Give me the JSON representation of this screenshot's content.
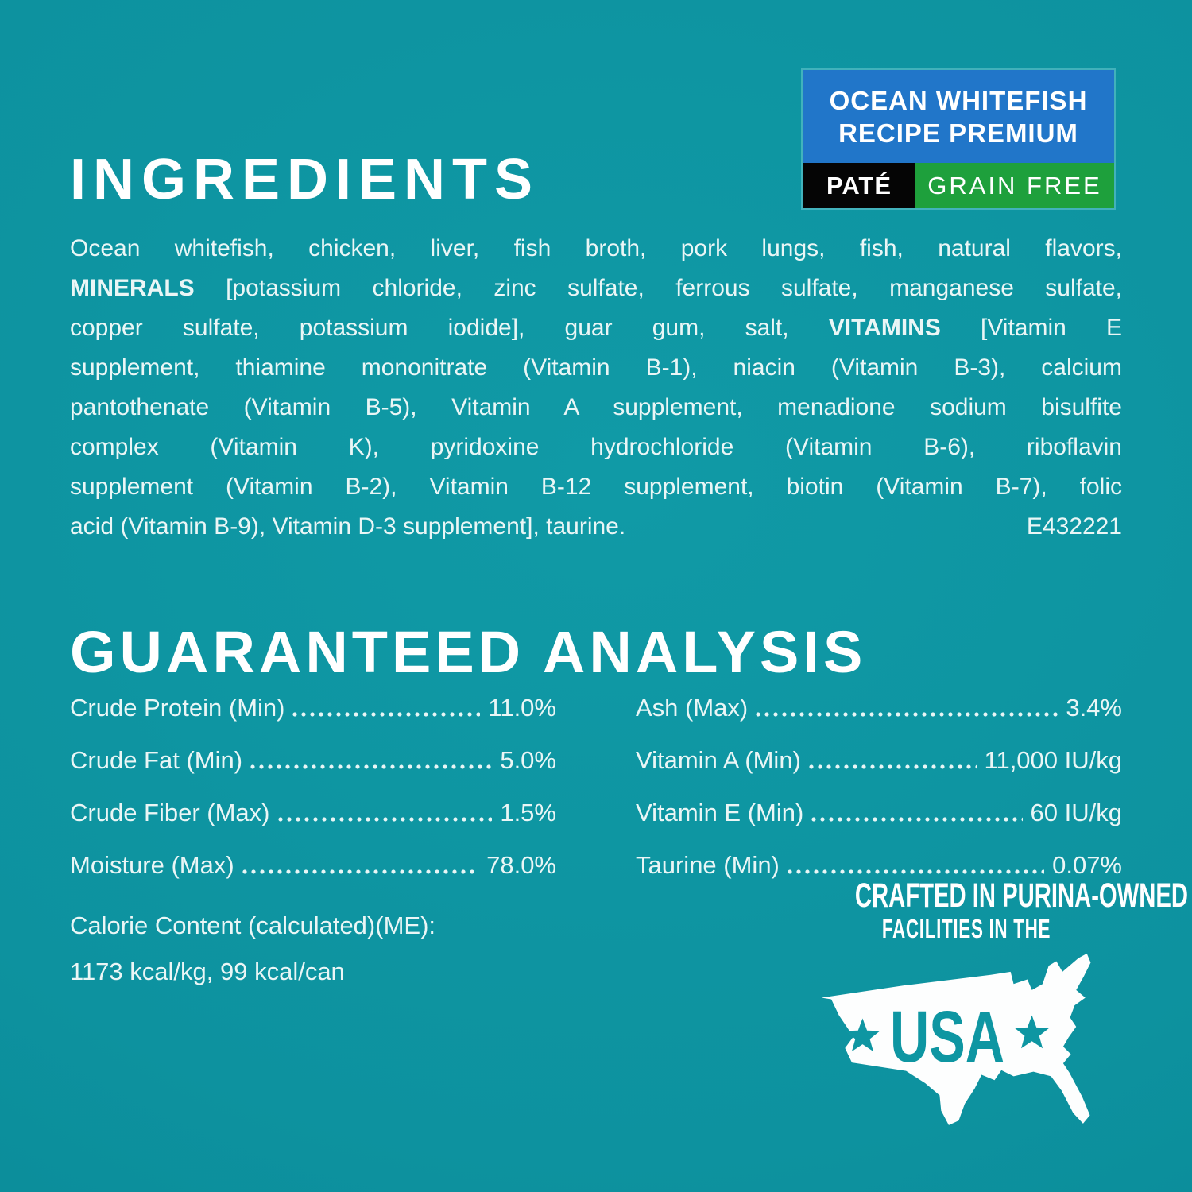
{
  "colors": {
    "background_teal": "#0E96A2",
    "badge_blue": "#2176C9",
    "badge_black": "#050505",
    "badge_green": "#1EA03C",
    "body_text": "#EAF6F6",
    "heading_text": "#FFFFFF",
    "map_white": "#FDFEFE"
  },
  "badge": {
    "title_line1": "OCEAN WHITEFISH",
    "title_line2": "RECIPE PREMIUM",
    "pate_label": "PATÉ",
    "grain_free_label": "GRAIN FREE"
  },
  "ingredients": {
    "heading": "INGREDIENTS",
    "lines": [
      [
        {
          "t": "Ocean whitefish, chicken, liver, fish broth, pork lungs, fish, natural flavors,"
        }
      ],
      [
        {
          "t": "MINERALS",
          "b": true
        },
        {
          "t": " [potassium chloride, zinc sulfate, ferrous sulfate, manganese sulfate,"
        }
      ],
      [
        {
          "t": "copper sulfate, potassium iodide], guar gum, salt, "
        },
        {
          "t": "VITAMINS",
          "b": true
        },
        {
          "t": " [Vitamin E"
        }
      ],
      [
        {
          "t": "supplement, thiamine mononitrate (Vitamin B-1), niacin (Vitamin B-3), calcium"
        }
      ],
      [
        {
          "t": "pantothenate (Vitamin B-5), Vitamin A supplement, menadione sodium bisulfite"
        }
      ],
      [
        {
          "t": "complex (Vitamin K), pyridoxine hydrochloride (Vitamin B-6), riboflavin"
        }
      ],
      [
        {
          "t": "supplement (Vitamin B-2), Vitamin B-12 supplement, biotin (Vitamin B-7), folic"
        }
      ]
    ],
    "last_line": "acid (Vitamin B-9), Vitamin D-3 supplement], taurine.",
    "code": "E432221"
  },
  "analysis": {
    "heading": "GUARANTEED ANALYSIS",
    "left_rows": [
      {
        "label": "Crude Protein (Min)",
        "value": "11.0%"
      },
      {
        "label": "Crude Fat (Min)",
        "value": "5.0%"
      },
      {
        "label": "Crude Fiber (Max)",
        "value": "1.5%"
      },
      {
        "label": "Moisture (Max)",
        "value": "78.0%"
      }
    ],
    "right_rows": [
      {
        "label": "Ash (Max)",
        "value": "3.4%"
      },
      {
        "label": "Vitamin A (Min)",
        "value": "11,000 IU/kg"
      },
      {
        "label": "Vitamin E (Min)",
        "value": "60 IU/kg"
      },
      {
        "label": "Taurine (Min)",
        "value": "0.07%"
      }
    ],
    "calorie_line1": "Calorie Content (calculated)(ME):",
    "calorie_line2": "1173 kcal/kg, 99 kcal/can"
  },
  "made_in": {
    "line1": "CRAFTED IN PURINA-OWNED",
    "line2": "FACILITIES IN THE",
    "usa_label": "USA"
  }
}
